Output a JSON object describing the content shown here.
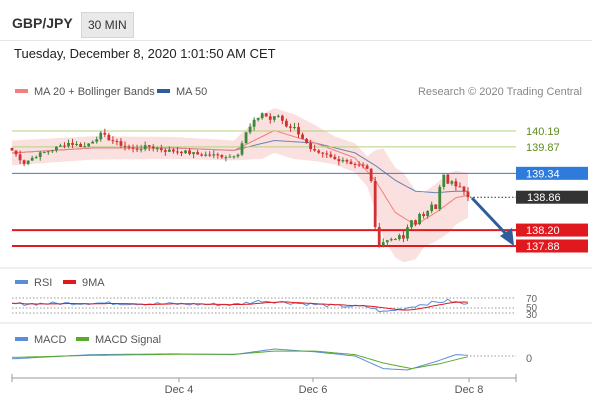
{
  "header": {
    "symbol": "GBP/JPY",
    "timeframe": "30 MIN",
    "datetime": "Tuesday, December 8, 2020 1:01:50 AM CET"
  },
  "price_panel": {
    "legend": [
      {
        "label": "MA 20 + Bollinger Bands",
        "color": "#f08080"
      },
      {
        "label": "MA 50",
        "color": "#2f5c9a"
      }
    ],
    "credit": "Research © 2020 Trading Central",
    "levels": [
      {
        "value": 140.19,
        "label": "140.19",
        "kind": "resistance",
        "color": "#b5d17d"
      },
      {
        "value": 139.87,
        "label": "139.87",
        "kind": "resistance",
        "color": "#b5d17d"
      },
      {
        "value": 139.34,
        "label": "139.34",
        "kind": "pivot",
        "color": "#2f7bdc"
      },
      {
        "value": 138.2,
        "label": "138.20",
        "kind": "support",
        "color": "#e0191f"
      },
      {
        "value": 137.88,
        "label": "137.88",
        "kind": "support",
        "color": "#e0191f"
      }
    ],
    "last_price": {
      "value": 138.86,
      "label": "138.86",
      "color": "#333333"
    },
    "arrow": {
      "direction": "down",
      "color": "#2f5c9a"
    },
    "up_color": "#3a8a3a",
    "down_color": "#d33030"
  },
  "rsi_panel": {
    "legend": [
      {
        "label": "RSI",
        "color": "#5b8ddb"
      },
      {
        "label": "9MA",
        "color": "#e0191f"
      }
    ],
    "ticks": [
      "70",
      "50",
      "30"
    ]
  },
  "macd_panel": {
    "legend": [
      {
        "label": "MACD",
        "color": "#5b8ddb"
      },
      {
        "label": "MACD Signal",
        "color": "#5aaa2a"
      }
    ],
    "ticks": [
      "0"
    ]
  },
  "x_axis": {
    "labels": [
      "Dec 4",
      "Dec 6",
      "Dec 8"
    ]
  },
  "chart_data": {
    "type": "candlestick",
    "title": "GBP/JPY 30 MIN",
    "x_labels": [
      "Dec 4",
      "Dec 6",
      "Dec 8"
    ],
    "ylim": [
      137.3,
      141.0
    ],
    "close_anchors": [
      [
        0,
        139.8
      ],
      [
        3,
        139.55
      ],
      [
        6,
        139.7
      ],
      [
        10,
        139.82
      ],
      [
        14,
        139.95
      ],
      [
        18,
        139.88
      ],
      [
        22,
        140.12
      ],
      [
        26,
        139.95
      ],
      [
        30,
        139.82
      ],
      [
        34,
        139.88
      ],
      [
        38,
        139.8
      ],
      [
        42,
        139.78
      ],
      [
        46,
        139.72
      ],
      [
        50,
        139.7
      ],
      [
        54,
        139.68
      ],
      [
        56,
        139.75
      ],
      [
        58,
        140.15
      ],
      [
        60,
        140.38
      ],
      [
        62,
        140.55
      ],
      [
        64,
        140.42
      ],
      [
        66,
        140.5
      ],
      [
        68,
        140.3
      ],
      [
        70,
        140.25
      ],
      [
        72,
        140.05
      ],
      [
        74,
        139.8
      ],
      [
        76,
        139.72
      ],
      [
        78,
        139.7
      ],
      [
        80,
        139.62
      ],
      [
        82,
        139.62
      ],
      [
        84,
        139.55
      ],
      [
        86,
        139.5
      ],
      [
        88,
        139.45
      ],
      [
        89,
        139.15
      ],
      [
        90,
        138.3
      ],
      [
        91,
        137.9
      ],
      [
        92,
        137.95
      ],
      [
        93,
        138.0
      ],
      [
        94,
        138.05
      ],
      [
        95,
        137.98
      ],
      [
        96,
        138.1
      ],
      [
        97,
        138.0
      ],
      [
        98,
        138.25
      ],
      [
        99,
        138.4
      ],
      [
        100,
        138.35
      ],
      [
        101,
        138.5
      ],
      [
        102,
        138.45
      ],
      [
        103,
        138.6
      ],
      [
        104,
        138.75
      ],
      [
        105,
        138.65
      ],
      [
        106,
        139.05
      ],
      [
        107,
        139.3
      ],
      [
        108,
        139.12
      ],
      [
        109,
        139.15
      ],
      [
        110,
        139.1
      ],
      [
        111,
        139.05
      ],
      [
        112,
        139.0
      ],
      [
        113,
        138.86
      ]
    ],
    "ma20_anchors": [
      [
        0,
        139.75
      ],
      [
        20,
        139.85
      ],
      [
        40,
        139.85
      ],
      [
        55,
        139.8
      ],
      [
        65,
        140.2
      ],
      [
        75,
        139.95
      ],
      [
        85,
        139.65
      ],
      [
        90,
        139.2
      ],
      [
        95,
        138.55
      ],
      [
        100,
        138.3
      ],
      [
        105,
        138.55
      ],
      [
        110,
        138.85
      ],
      [
        113,
        138.9
      ]
    ],
    "ma50_anchors": [
      [
        0,
        139.75
      ],
      [
        20,
        139.85
      ],
      [
        40,
        139.85
      ],
      [
        55,
        139.8
      ],
      [
        65,
        140.0
      ],
      [
        75,
        139.95
      ],
      [
        85,
        139.75
      ],
      [
        90,
        139.5
      ],
      [
        95,
        139.2
      ],
      [
        100,
        138.98
      ],
      [
        105,
        138.95
      ],
      [
        110,
        138.98
      ],
      [
        113,
        138.98
      ]
    ],
    "bb_width_anchors": [
      [
        0,
        0.25
      ],
      [
        40,
        0.22
      ],
      [
        55,
        0.2
      ],
      [
        62,
        0.45
      ],
      [
        70,
        0.45
      ],
      [
        80,
        0.28
      ],
      [
        88,
        0.3
      ],
      [
        92,
        0.9
      ],
      [
        97,
        0.9
      ],
      [
        102,
        0.55
      ],
      [
        108,
        0.6
      ],
      [
        113,
        0.45
      ]
    ]
  }
}
